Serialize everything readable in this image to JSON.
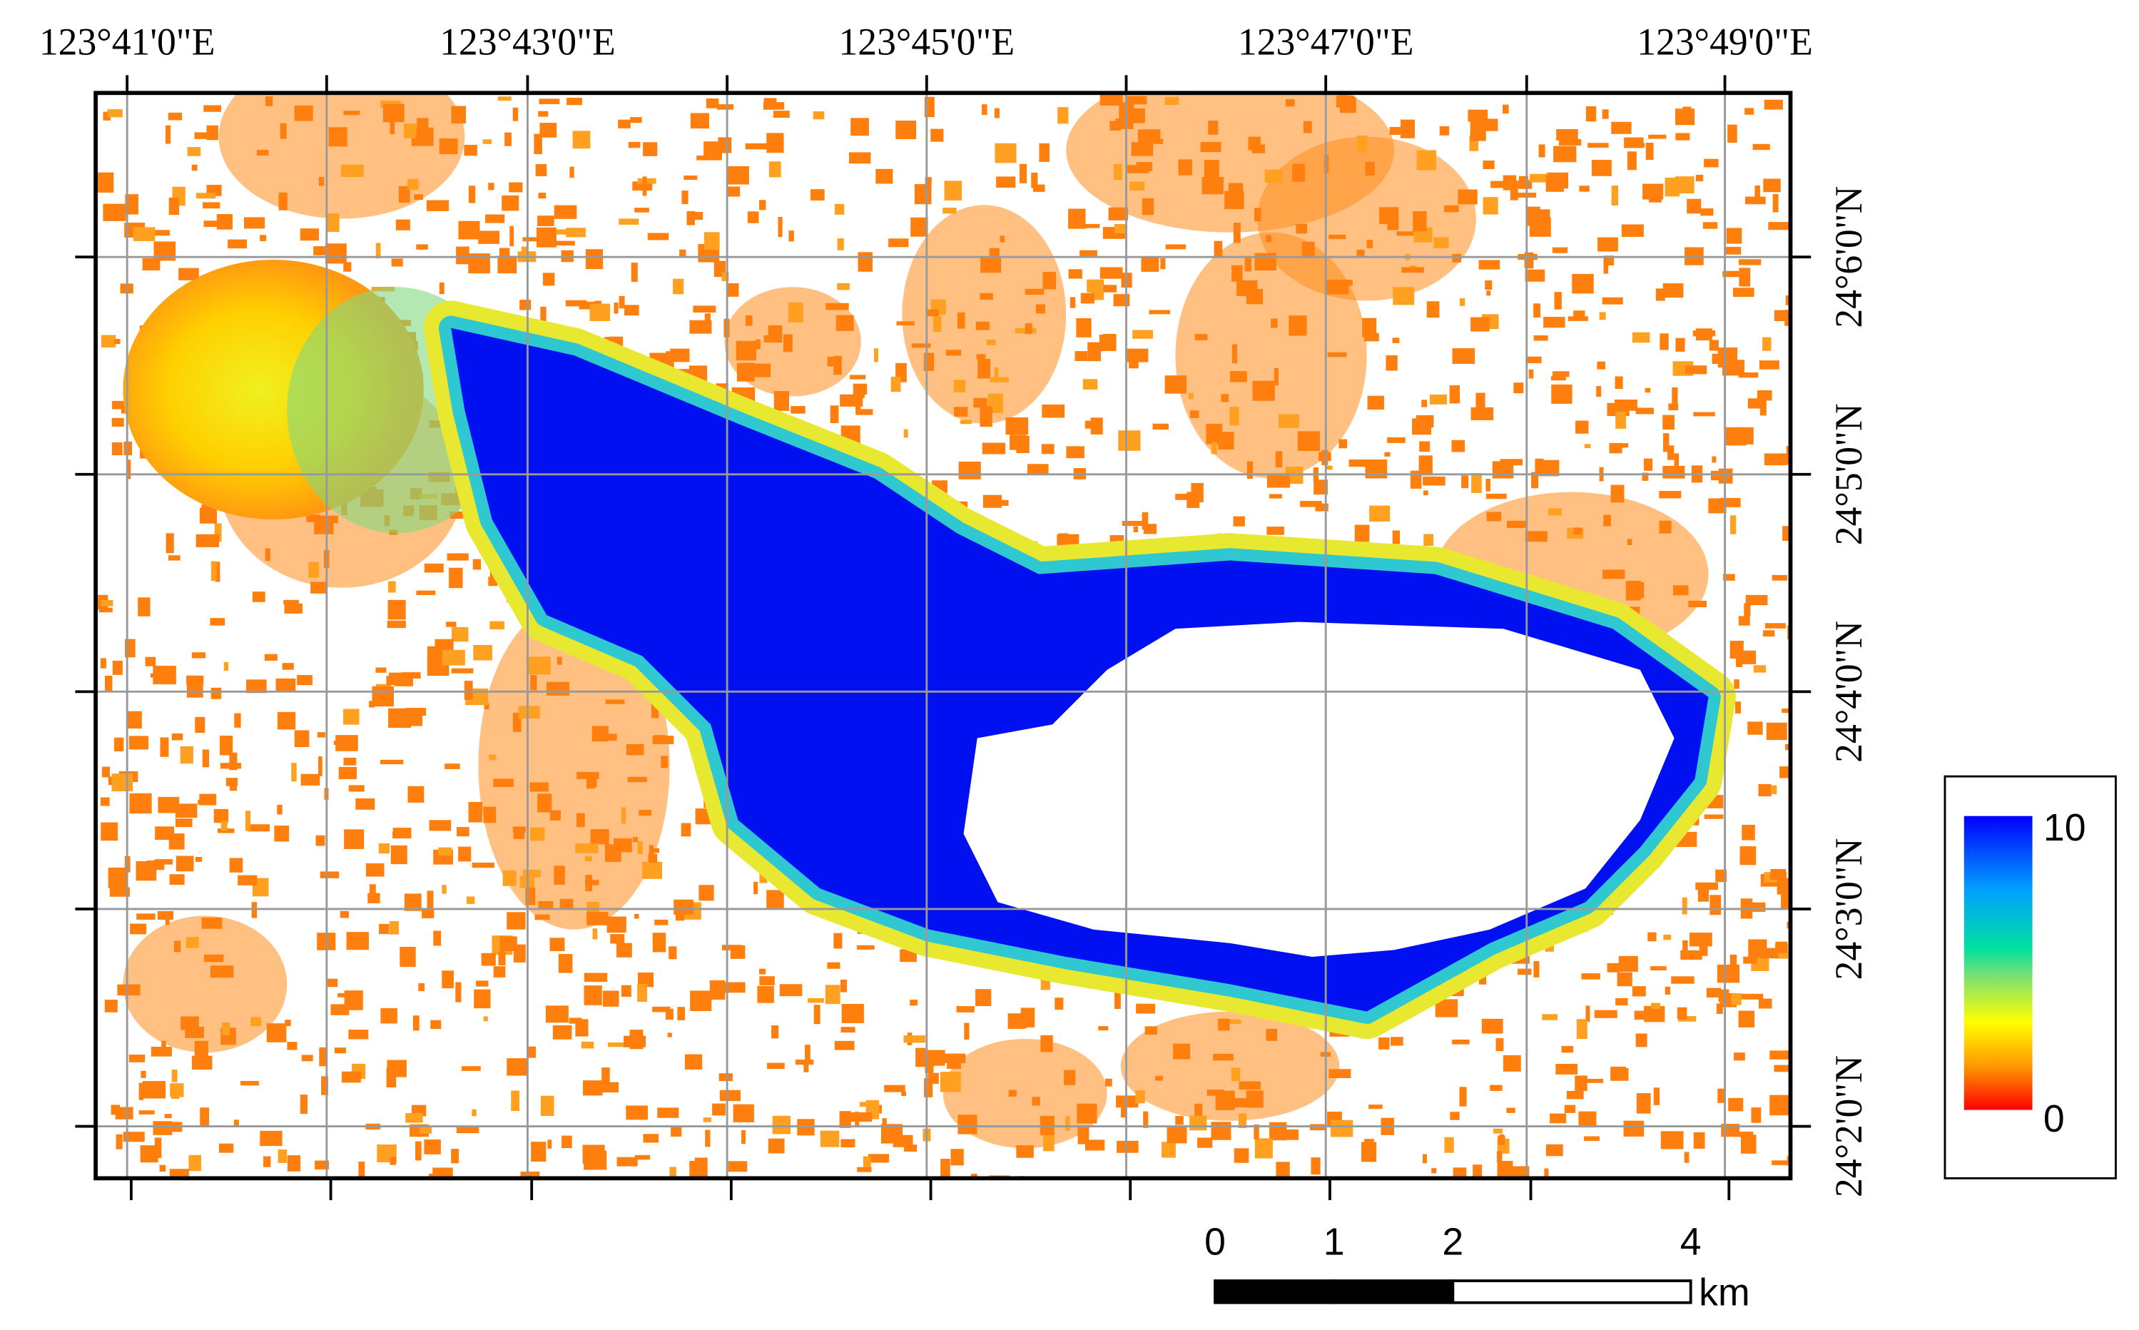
{
  "map": {
    "lon_labels": [
      "123°41'0\"E",
      "123°43'0\"E",
      "123°45'0\"E",
      "123°47'0\"E",
      "123°49'0\"E"
    ],
    "lat_labels": [
      "24°6'0\"N",
      "24°5'0\"N",
      "24°4'0\"N",
      "24°3'0\"N",
      "24°2'0\"N"
    ],
    "legend": {
      "max": 10,
      "min": 0
    },
    "scale_bar": {
      "ticks": [
        0,
        1,
        2,
        4
      ],
      "unit": "km"
    }
  }
}
